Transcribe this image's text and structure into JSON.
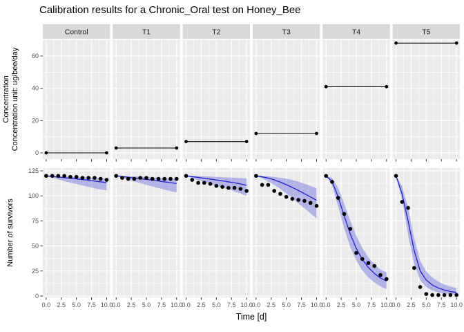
{
  "title": "Calibration results for a Chronic_Oral test on Honey_Bee",
  "chart_data": {
    "type": "line",
    "title": "Calibration results for a Chronic_Oral test on Honey_Bee",
    "facets": [
      "Control",
      "T1",
      "T2",
      "T3",
      "T4",
      "T5"
    ],
    "x_label": "Time [d]",
    "x_tick_labels": [
      "0.0",
      "2.5",
      "5.0",
      "7.5",
      "10.0"
    ],
    "x_tick_values": [
      0,
      2.5,
      5,
      7.5,
      10
    ],
    "x_minor_ticks": [
      1.25,
      3.75,
      6.25,
      8.75
    ],
    "days": [
      0,
      1,
      2,
      3,
      4,
      5,
      6,
      7,
      8,
      9,
      10
    ],
    "top_row": {
      "y_label_line1": "Concentration",
      "y_label_line2": "Concentration unit: ug/bee/day",
      "y_ticks": [
        0,
        20,
        40,
        60
      ],
      "y_minor_ticks": [
        10,
        30,
        50,
        70
      ],
      "concentration_values": [
        0,
        3,
        7,
        12,
        41,
        68
      ]
    },
    "bottom_row": {
      "y_label": "Number of survivors",
      "y_ticks": [
        0,
        25,
        50,
        75,
        100,
        125
      ],
      "y_minor_ticks": [
        12.5,
        37.5,
        62.5,
        87.5,
        112.5
      ],
      "series": [
        {
          "facet": "Control",
          "observed": [
            120,
            120,
            120,
            120,
            119,
            119,
            118,
            118,
            118,
            117,
            116
          ],
          "fit": [
            120,
            119.4,
            118.8,
            118.2,
            117.6,
            117,
            116.3,
            115.6,
            114.8,
            114,
            113.2
          ],
          "hi": [
            120,
            120,
            119.8,
            119.5,
            119.2,
            119,
            118.7,
            118.4,
            118.1,
            117.8,
            117.5
          ],
          "lo": [
            120,
            118.2,
            116.5,
            114.8,
            113.2,
            111.8,
            110.4,
            109,
            107.6,
            106.4,
            105.5
          ]
        },
        {
          "facet": "T1",
          "observed": [
            120,
            118,
            117,
            117,
            118,
            118,
            117,
            117,
            117,
            117,
            117
          ],
          "fit": [
            120,
            119.3,
            118.6,
            117.9,
            117.2,
            116.5,
            115.7,
            114.9,
            114,
            113.2,
            112.3
          ],
          "hi": [
            120,
            120,
            119.7,
            119.4,
            119.1,
            118.8,
            118.4,
            118,
            117.7,
            117.4,
            117.1
          ],
          "lo": [
            120,
            118,
            116.2,
            114.4,
            112.7,
            111,
            109.4,
            107.8,
            106.2,
            104.8,
            103.5
          ]
        },
        {
          "facet": "T2",
          "observed": [
            120,
            116,
            113,
            113,
            112,
            110,
            109,
            108,
            108,
            107,
            105
          ],
          "fit": [
            120,
            119.2,
            118.4,
            117.6,
            116.8,
            115.9,
            115,
            114,
            113,
            112,
            110.5
          ],
          "hi": [
            120,
            120,
            119.8,
            119.5,
            119.3,
            119,
            118.7,
            118.4,
            118.1,
            117.8,
            117.5
          ],
          "lo": [
            120,
            117.8,
            115.7,
            113.7,
            111.8,
            110,
            108.2,
            106.4,
            104.6,
            102.5,
            100
          ]
        },
        {
          "facet": "T3",
          "observed": [
            120,
            111,
            111,
            105,
            102,
            99,
            97,
            96,
            95,
            93,
            90
          ],
          "fit": [
            120,
            119,
            117.8,
            116,
            113.8,
            111.2,
            108.4,
            105.4,
            102.2,
            99,
            95.5
          ],
          "hi": [
            120,
            120,
            119.6,
            119,
            118.2,
            117.2,
            115.8,
            114.2,
            112.2,
            110,
            107.5
          ],
          "lo": [
            120,
            117.5,
            114.5,
            111,
            107,
            102.5,
            97.5,
            92.5,
            87.5,
            82.5,
            77.5
          ]
        },
        {
          "facet": "T4",
          "observed": [
            120,
            114,
            98,
            82,
            67,
            43,
            37,
            33,
            30,
            21,
            17
          ],
          "fit": [
            120,
            114.5,
            99,
            80,
            62,
            47.5,
            36.5,
            28.5,
            22.5,
            18,
            15
          ],
          "hi": [
            120,
            118,
            108,
            92,
            75.5,
            60,
            48,
            38.5,
            31.5,
            26.5,
            23.5
          ],
          "lo": [
            120,
            110.5,
            89.5,
            67.5,
            49,
            35.5,
            25.5,
            18.5,
            13.5,
            9.5,
            7
          ]
        },
        {
          "facet": "T5",
          "observed": [
            120,
            94,
            88,
            28,
            9,
            2,
            1,
            1,
            1,
            1,
            1
          ],
          "fit": [
            120,
            102,
            75,
            45.5,
            25,
            16,
            11,
            8,
            6,
            4.5,
            3.5
          ],
          "hi": [
            120,
            110,
            88,
            58,
            35,
            24.5,
            18.5,
            14.5,
            11.5,
            9.5,
            8
          ],
          "lo": [
            120,
            96,
            61,
            32,
            16,
            9,
            5.5,
            3.5,
            2.5,
            2,
            1.5
          ]
        }
      ]
    },
    "style": {
      "panel_bg": "#ebebeb",
      "strip_bg": "#d9d9d9",
      "strip_text": "#1a1a1a",
      "grid": "#ffffff",
      "axis_text": "#4d4d4d",
      "tick_mark": "#333333",
      "conc_line": "#000000",
      "fit_line": "#2222cc",
      "ribbon": "#5c5cd966",
      "point": "#000000"
    }
  }
}
